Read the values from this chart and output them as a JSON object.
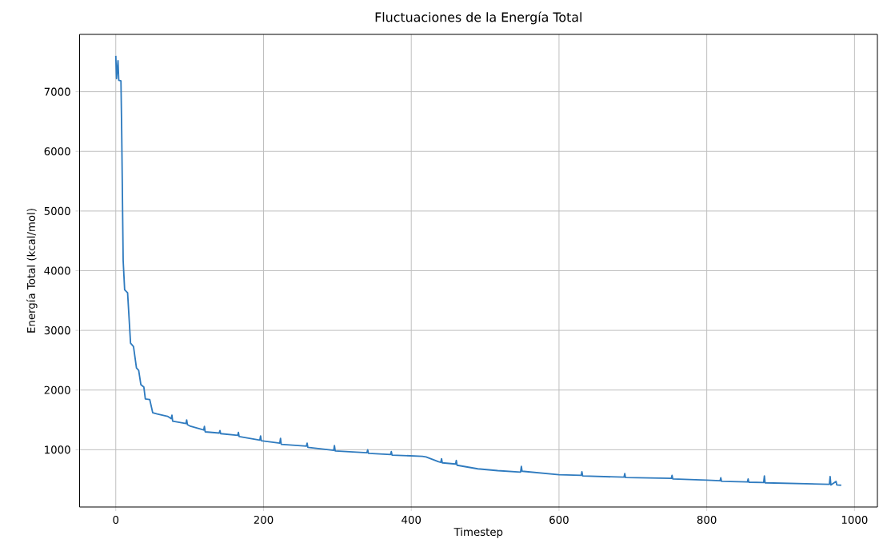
{
  "chart_data": {
    "type": "line",
    "title": "Fluctuaciones de la Energía Total",
    "xlabel": "Timestep",
    "ylabel": "Energía Total (kcal/mol)",
    "x": [
      0,
      1,
      3,
      4,
      7,
      8,
      10,
      12,
      16,
      20,
      24,
      28,
      31,
      34,
      38,
      40,
      46,
      50,
      56,
      70,
      75,
      76,
      77,
      95,
      96,
      97,
      100,
      119,
      120,
      121,
      140,
      141,
      142,
      165,
      166,
      167,
      195,
      196,
      197,
      222,
      223,
      224,
      258,
      259,
      260,
      295,
      296,
      297,
      340,
      341,
      342,
      372,
      373,
      374,
      415,
      420,
      437,
      440,
      441,
      442,
      460,
      461,
      462,
      490,
      517,
      548,
      549,
      550,
      600,
      630,
      631,
      632,
      688,
      689,
      690,
      752,
      753,
      754,
      800,
      818,
      819,
      820,
      855,
      856,
      857,
      877,
      878,
      879,
      966,
      967,
      968,
      975,
      976,
      982
    ],
    "values": [
      7600,
      7220,
      7520,
      7190,
      7180,
      6340,
      4170,
      3680,
      3630,
      2785,
      2730,
      2370,
      2330,
      2090,
      2050,
      1850,
      1840,
      1620,
      1600,
      1560,
      1520,
      1580,
      1480,
      1440,
      1500,
      1420,
      1400,
      1330,
      1390,
      1300,
      1280,
      1320,
      1270,
      1240,
      1290,
      1220,
      1160,
      1230,
      1150,
      1110,
      1190,
      1090,
      1060,
      1110,
      1040,
      990,
      1070,
      980,
      950,
      1000,
      940,
      920,
      970,
      910,
      890,
      880,
      800,
      790,
      850,
      780,
      760,
      820,
      740,
      680,
      650,
      625,
      720,
      640,
      580,
      570,
      630,
      560,
      540,
      600,
      535,
      520,
      570,
      510,
      490,
      480,
      530,
      470,
      460,
      510,
      455,
      450,
      560,
      445,
      420,
      550,
      410,
      470,
      410,
      405
    ],
    "color": "#2f7bbf",
    "xlim": [
      -49,
      1031
    ],
    "ylim": [
      40,
      7960
    ],
    "xticks": [
      0,
      200,
      400,
      600,
      800,
      1000
    ],
    "yticks": [
      1000,
      2000,
      3000,
      4000,
      5000,
      6000,
      7000
    ],
    "grid": true
  }
}
